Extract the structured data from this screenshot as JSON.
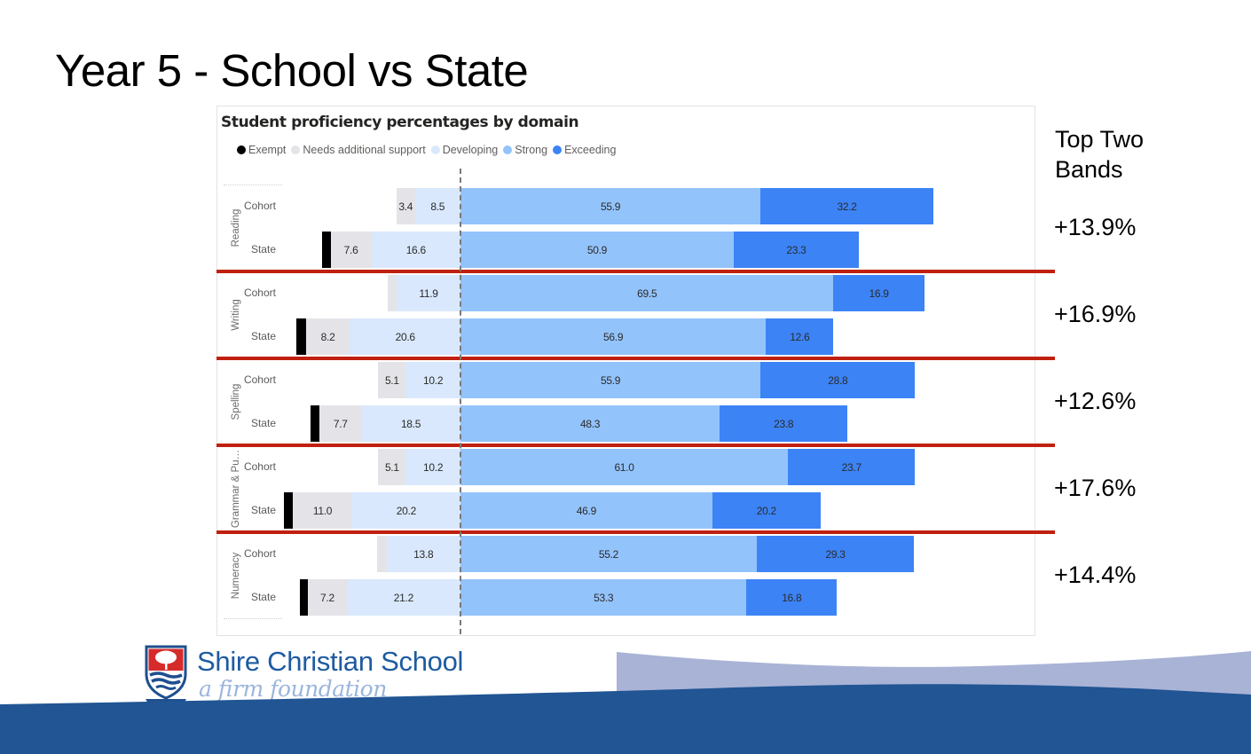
{
  "slide": {
    "title": "Year 5 - School vs State"
  },
  "chart_data": {
    "type": "bar",
    "orientation": "horizontal diverging stacked",
    "title": "Student proficiency percentages by domain",
    "xlabel": "",
    "ylabel": "",
    "unit": "%",
    "baseline": "between Developing and Strong",
    "legend_position": "top-left",
    "grid": false,
    "legend": [
      {
        "name": "Exempt",
        "color": "#000000"
      },
      {
        "name": "Needs additional support",
        "color": "#e4e4e8"
      },
      {
        "name": "Developing",
        "color": "#d9e8fc"
      },
      {
        "name": "Strong",
        "color": "#93c3fb"
      },
      {
        "name": "Exceeding",
        "color": "#3c83f6"
      }
    ],
    "series_order": [
      "Exempt",
      "Needs additional support",
      "Developing",
      "Strong",
      "Exceeding"
    ],
    "domains": [
      {
        "name": "Reading",
        "rows": [
          {
            "label": "Cohort",
            "values": [
              0,
              3.4,
              8.5,
              55.9,
              32.2
            ]
          },
          {
            "label": "State",
            "values": [
              1.6,
              7.6,
              16.6,
              50.9,
              23.3
            ]
          }
        ]
      },
      {
        "name": "Writing",
        "rows": [
          {
            "label": "Cohort",
            "values": [
              0,
              1.7,
              11.9,
              69.5,
              16.9
            ]
          },
          {
            "label": "State",
            "values": [
              1.7,
              8.2,
              20.6,
              56.9,
              12.6
            ]
          }
        ]
      },
      {
        "name": "Spelling",
        "rows": [
          {
            "label": "Cohort",
            "values": [
              0,
              5.1,
              10.2,
              55.9,
              28.8
            ]
          },
          {
            "label": "State",
            "values": [
              1.7,
              7.7,
              18.5,
              48.3,
              23.8
            ]
          }
        ]
      },
      {
        "name": "Grammar & Pu…",
        "rows": [
          {
            "label": "Cohort",
            "values": [
              0,
              5.1,
              10.2,
              61.0,
              23.7
            ]
          },
          {
            "label": "State",
            "values": [
              1.7,
              11.0,
              20.2,
              46.9,
              20.2
            ]
          }
        ]
      },
      {
        "name": "Numeracy",
        "rows": [
          {
            "label": "Cohort",
            "values": [
              0,
              1.7,
              13.8,
              55.2,
              29.3
            ]
          },
          {
            "label": "State",
            "values": [
              1.5,
              7.2,
              21.2,
              53.3,
              16.8
            ]
          }
        ]
      }
    ]
  },
  "annotations": {
    "heading": "Top Two Bands",
    "values": [
      "+13.9%",
      "+16.9%",
      "+12.6%",
      "+17.6%",
      "+14.4%"
    ],
    "separator_color": "#c0200f"
  },
  "branding": {
    "school_name": "Shire Christian School",
    "tagline": "a firm foundation",
    "primary_color": "#1e5ba0",
    "wave_colors": [
      "#a9b3d6",
      "#215594"
    ]
  }
}
